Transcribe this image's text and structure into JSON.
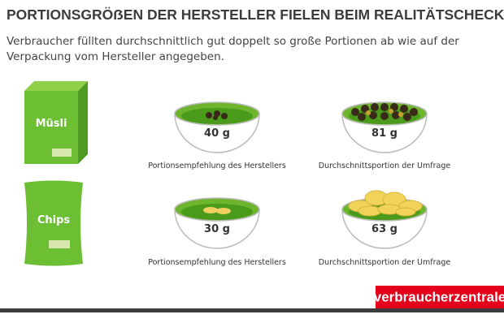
{
  "header": {
    "title": "PORTIONSGRÖẞEN DER HERSTELLER FIELEN BEIM REALITÄTSCHECK DURCH",
    "subtitle_lines": [
      "Verbraucher füllten durchschnittlich gut doppelt so große Portionen ab wie auf der",
      "Verpackung vom Hersteller angegeben."
    ]
  },
  "rows": [
    {
      "product": "Müsli",
      "bowls": [
        {
          "amount": "40 g",
          "caption": "Portionsempfehlung des Herstellers"
        },
        {
          "amount": "81 g",
          "caption": "Durchschnittsportion der Umfrage"
        }
      ]
    },
    {
      "product": "Chips",
      "bowls": [
        {
          "amount": "30 g",
          "caption": "Portionsempfehlung des Herstellers"
        },
        {
          "amount": "63 g",
          "caption": "Durchschnittsportion der Umfrage"
        }
      ]
    }
  ],
  "footer": {
    "logo": "verbraucherzentrale"
  }
}
